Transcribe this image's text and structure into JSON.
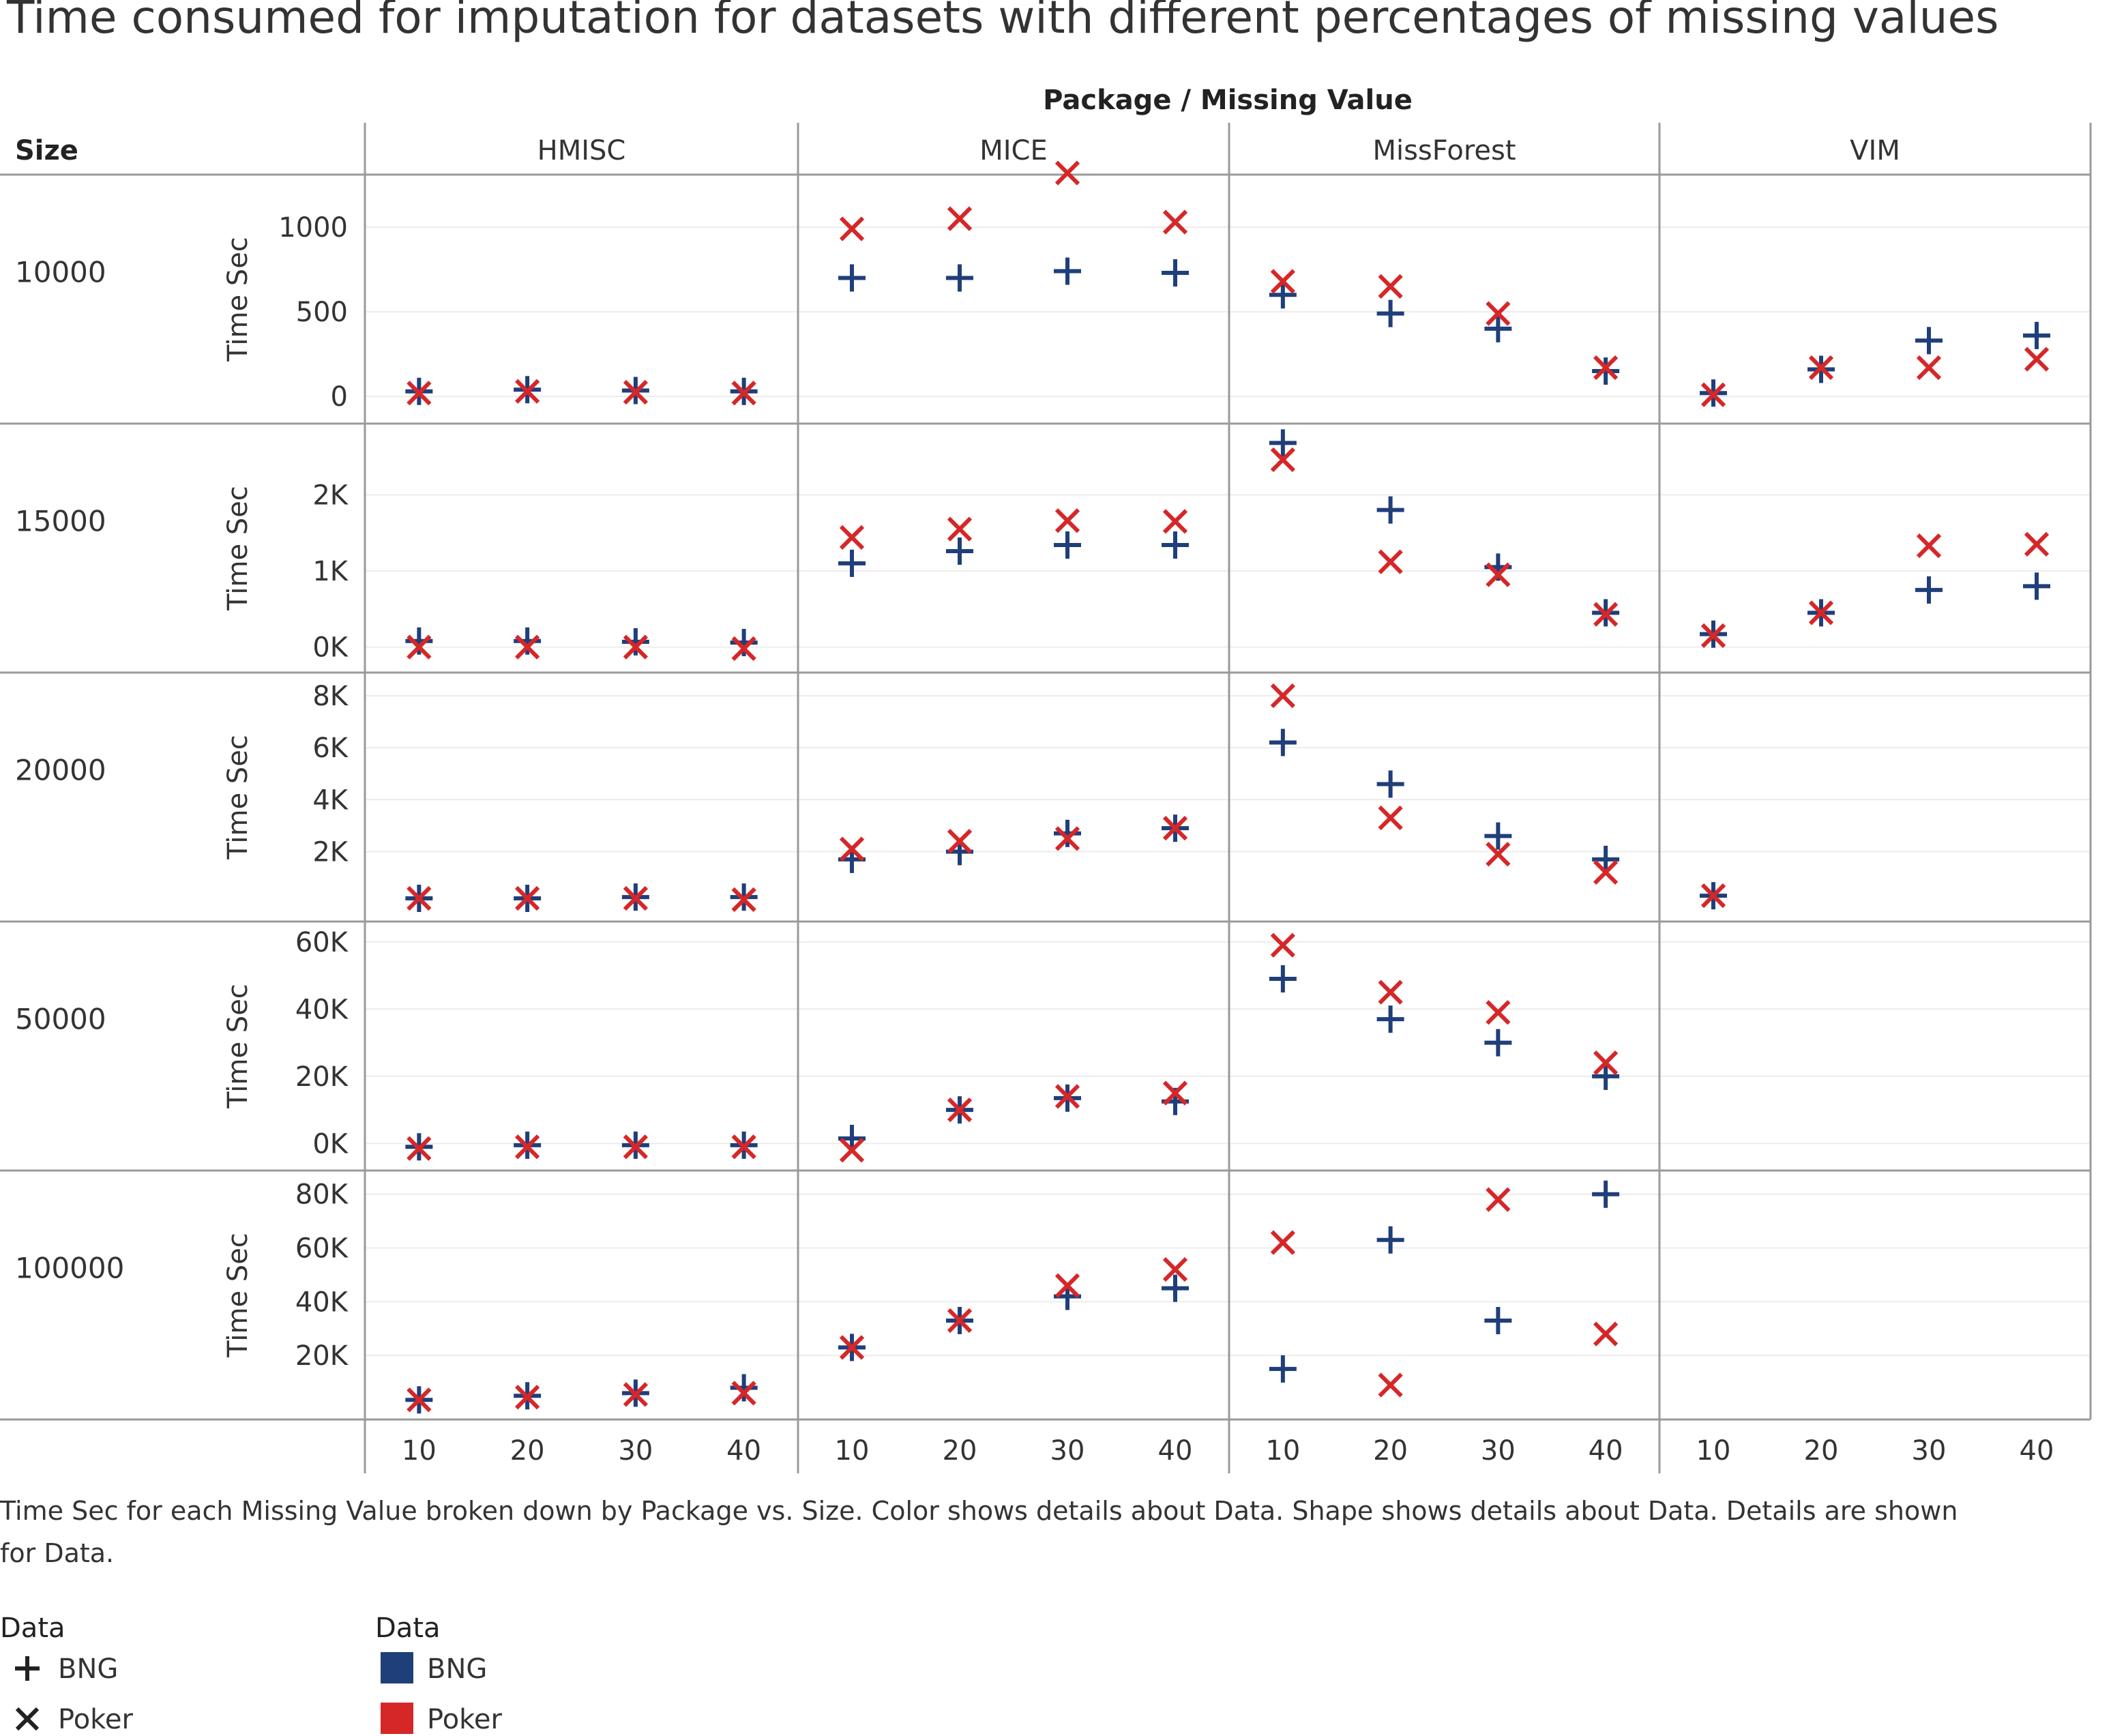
{
  "title": "Time consumed for imputation for datasets with different percentages of missing values",
  "column_header": "Package / Missing Value",
  "row_header": "Size",
  "caption_lines": [
    "Time Sec for each Missing Value broken down by Package vs. Size.  Color shows details about Data.  Shape shows details about Data.  Details are shown",
    "for Data."
  ],
  "legend": {
    "shape_title": "Data",
    "color_title": "Data",
    "items": [
      {
        "label": "BNG",
        "shape": "plus",
        "color": "#1f3f7a"
      },
      {
        "label": "Poker",
        "shape": "x",
        "color": "#d62728"
      }
    ]
  },
  "chart_data": {
    "type": "scatter",
    "ylabel": "Time Sec",
    "x": [
      10,
      20,
      30,
      40
    ],
    "packages": [
      "HMISC",
      "MICE",
      "MissForest",
      "VIM"
    ],
    "rows": [
      {
        "size": "10000",
        "ylim": [
          -100,
          1250
        ],
        "ticks": [
          {
            "v": 0,
            "label": "0"
          },
          {
            "v": 500,
            "label": "500"
          },
          {
            "v": 1000,
            "label": "1000"
          }
        ],
        "series": [
          {
            "name": "BNG",
            "values": [
              [
                30,
                40,
                35,
                30
              ],
              [
                700,
                700,
                740,
                730
              ],
              [
                600,
                490,
                400,
                150
              ],
              [
                20,
                160,
                330,
                360
              ]
            ]
          },
          {
            "name": "Poker",
            "values": [
              [
                20,
                30,
                25,
                20
              ],
              [
                990,
                1050,
                1320,
                1030
              ],
              [
                680,
                650,
                490,
                170
              ],
              [
                10,
                170,
                170,
                220
              ]
            ]
          }
        ]
      },
      {
        "size": "15000",
        "ylim": [
          -200,
          2800
        ],
        "ticks": [
          {
            "v": 0,
            "label": "0K"
          },
          {
            "v": 1000,
            "label": "1K"
          },
          {
            "v": 2000,
            "label": "2K"
          }
        ],
        "series": [
          {
            "name": "BNG",
            "values": [
              [
                80,
                80,
                70,
                60
              ],
              [
                1100,
                1260,
                1340,
                1340
              ],
              [
                2680,
                1800,
                1050,
                450
              ],
              [
                170,
                450,
                750,
                800
              ]
            ]
          },
          {
            "name": "Poker",
            "values": [
              [
                0,
                0,
                0,
                -20
              ],
              [
                1440,
                1550,
                1660,
                1650
              ],
              [
                2460,
                1120,
                950,
                430
              ],
              [
                150,
                450,
                1330,
                1350
              ]
            ]
          }
        ]
      },
      {
        "size": "20000",
        "ylim": [
          -300,
          8500
        ],
        "ticks": [
          {
            "v": 2000,
            "label": "2K"
          },
          {
            "v": 4000,
            "label": "4K"
          },
          {
            "v": 6000,
            "label": "6K"
          },
          {
            "v": 8000,
            "label": "8K"
          }
        ],
        "series": [
          {
            "name": "BNG",
            "values": [
              [
                200,
                200,
                250,
                250
              ],
              [
                1700,
                2000,
                2700,
                2900
              ],
              [
                6200,
                4600,
                2600,
                1700
              ],
              [
                300,
                null,
                null,
                null
              ]
            ]
          },
          {
            "name": "Poker",
            "values": [
              [
                200,
                200,
                200,
                150
              ],
              [
                2100,
                2400,
                2500,
                2900
              ],
              [
                8000,
                3300,
                1900,
                1200
              ],
              [
                300,
                null,
                null,
                null
              ]
            ]
          }
        ]
      },
      {
        "size": "50000",
        "ylim": [
          -5000,
          63000
        ],
        "ticks": [
          {
            "v": 0,
            "label": "0K"
          },
          {
            "v": 20000,
            "label": "20K"
          },
          {
            "v": 40000,
            "label": "40K"
          },
          {
            "v": 60000,
            "label": "60K"
          }
        ],
        "series": [
          {
            "name": "BNG",
            "values": [
              [
                -1000,
                -500,
                -500,
                -500
              ],
              [
                1500,
                10000,
                13500,
                12500
              ],
              [
                49000,
                37000,
                30000,
                20000
              ],
              [
                null,
                null,
                null,
                null
              ]
            ]
          },
          {
            "name": "Poker",
            "values": [
              [
                -1500,
                -1000,
                -1000,
                -1000
              ],
              [
                -2000,
                10000,
                14000,
                15000
              ],
              [
                59000,
                45000,
                39000,
                24000
              ],
              [
                null,
                null,
                null,
                null
              ]
            ]
          }
        ]
      },
      {
        "size": "100000",
        "ylim": [
          0,
          85000
        ],
        "ticks": [
          {
            "v": 20000,
            "label": "20K"
          },
          {
            "v": 40000,
            "label": "40K"
          },
          {
            "v": 60000,
            "label": "60K"
          },
          {
            "v": 80000,
            "label": "80K"
          }
        ],
        "series": [
          {
            "name": "BNG",
            "values": [
              [
                3500,
                5000,
                6000,
                8000
              ],
              [
                23000,
                33000,
                42000,
                45000
              ],
              [
                15000,
                63000,
                33000,
                80000
              ],
              [
                null,
                null,
                null,
                null
              ]
            ]
          },
          {
            "name": "Poker",
            "values": [
              [
                3500,
                4500,
                5500,
                6000
              ],
              [
                23000,
                33000,
                46000,
                52000
              ],
              [
                62000,
                9000,
                78000,
                28000
              ],
              [
                null,
                null,
                null,
                null
              ]
            ]
          }
        ]
      }
    ],
    "legend_position": "bottom-left",
    "grid": true
  }
}
